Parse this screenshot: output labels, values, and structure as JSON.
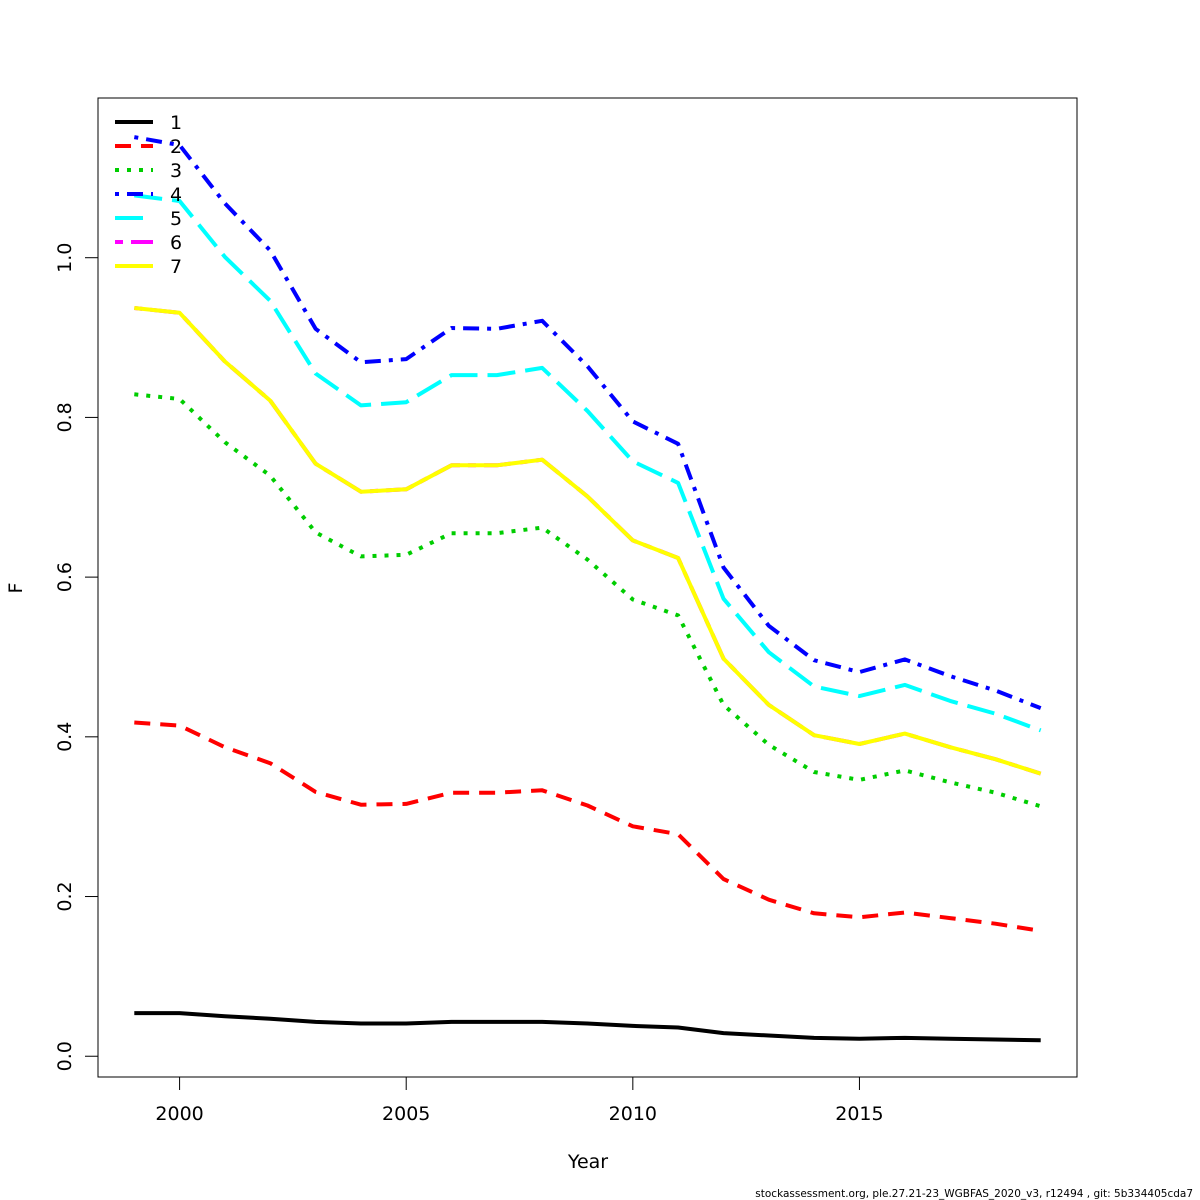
{
  "chart_data": {
    "type": "line",
    "title": "",
    "xlabel": "Year",
    "ylabel": "F",
    "xlim": [
      1998.2,
      2019.8
    ],
    "ylim": [
      -0.026,
      1.2
    ],
    "x_ticks": [
      2000,
      2005,
      2010,
      2015
    ],
    "x_tick_labels": [
      "2000",
      "2005",
      "2010",
      "2015"
    ],
    "y_ticks": [
      0.0,
      0.2,
      0.4,
      0.6,
      0.8,
      1.0
    ],
    "y_tick_labels": [
      "0.0",
      "0.2",
      "0.4",
      "0.6",
      "0.8",
      "1.0"
    ],
    "grid": false,
    "legend_position": "top-left",
    "x": [
      1999,
      2000,
      2001,
      2002,
      2003,
      2004,
      2005,
      2006,
      2007,
      2008,
      2009,
      2010,
      2011,
      2012,
      2013,
      2014,
      2015,
      2016,
      2017,
      2018,
      2019
    ],
    "series": [
      {
        "name": "1",
        "color": "#000000",
        "dash": "solid",
        "values": [
          0.054,
          0.054,
          0.05,
          0.047,
          0.043,
          0.041,
          0.041,
          0.043,
          0.043,
          0.043,
          0.041,
          0.038,
          0.036,
          0.029,
          0.026,
          0.023,
          0.022,
          0.023,
          0.022,
          0.021,
          0.02
        ]
      },
      {
        "name": "2",
        "color": "#ff0000",
        "dash": "dashed",
        "values": [
          0.418,
          0.414,
          0.387,
          0.367,
          0.331,
          0.315,
          0.316,
          0.33,
          0.33,
          0.333,
          0.314,
          0.288,
          0.278,
          0.222,
          0.196,
          0.179,
          0.174,
          0.18,
          0.173,
          0.166,
          0.157
        ]
      },
      {
        "name": "3",
        "color": "#00cd00",
        "dash": "dotted",
        "values": [
          0.829,
          0.823,
          0.769,
          0.727,
          0.656,
          0.626,
          0.628,
          0.655,
          0.655,
          0.662,
          0.622,
          0.572,
          0.552,
          0.44,
          0.39,
          0.356,
          0.346,
          0.358,
          0.343,
          0.33,
          0.313
        ]
      },
      {
        "name": "4",
        "color": "#0000ff",
        "dash": "dotdash",
        "values": [
          1.151,
          1.141,
          1.068,
          1.009,
          0.911,
          0.869,
          0.873,
          0.912,
          0.911,
          0.921,
          0.864,
          0.795,
          0.767,
          0.612,
          0.539,
          0.496,
          0.481,
          0.497,
          0.476,
          0.458,
          0.436
        ]
      },
      {
        "name": "5",
        "color": "#00ffff",
        "dash": "longdash",
        "values": [
          1.078,
          1.071,
          1.001,
          0.946,
          0.855,
          0.815,
          0.819,
          0.853,
          0.853,
          0.862,
          0.808,
          0.745,
          0.718,
          0.573,
          0.506,
          0.463,
          0.451,
          0.465,
          0.445,
          0.429,
          0.408
        ]
      },
      {
        "name": "6",
        "color": "#ff00ff",
        "dash": "twodash",
        "values": [
          0.937,
          0.931,
          0.87,
          0.821,
          0.742,
          0.707,
          0.71,
          0.74,
          0.74,
          0.747,
          0.701,
          0.646,
          0.624,
          0.498,
          0.44,
          0.402,
          0.391,
          0.404,
          0.387,
          0.372,
          0.354
        ]
      },
      {
        "name": "7",
        "color": "#ffff00",
        "dash": "solid",
        "values": [
          0.937,
          0.931,
          0.87,
          0.821,
          0.742,
          0.707,
          0.71,
          0.74,
          0.74,
          0.747,
          0.701,
          0.646,
          0.624,
          0.498,
          0.44,
          0.402,
          0.391,
          0.404,
          0.387,
          0.372,
          0.354
        ]
      }
    ]
  },
  "footer": {
    "text": "stockassessment.org, ple.27.21-23_WGBFAS_2020_v3, r12494 , git: 5b334405cda7"
  }
}
